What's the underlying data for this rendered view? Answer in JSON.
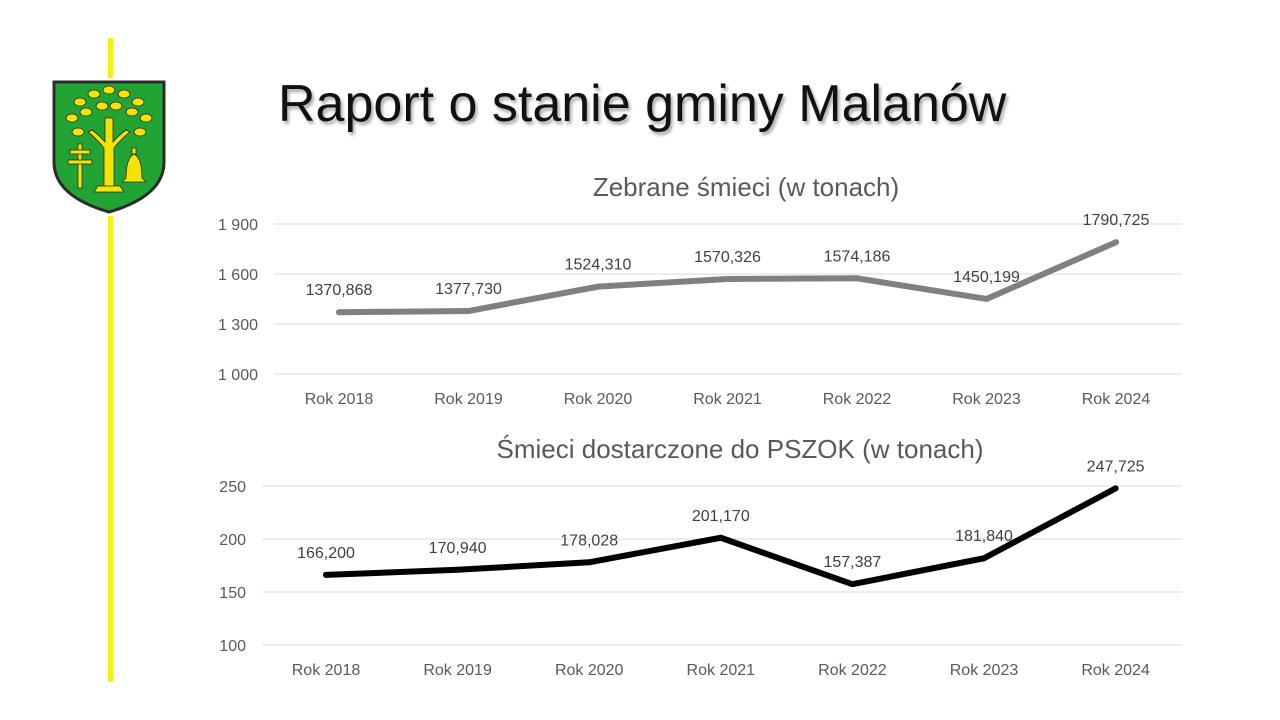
{
  "page": {
    "title": "Raport o stanie gminy Malanów"
  },
  "logo": {
    "shield_green": "#22a434",
    "emblem_yellow": "#f5e400",
    "outline": "#2b2b2b"
  },
  "chart_data": [
    {
      "type": "line",
      "title": "Zebrane śmieci (w tonach)",
      "categories": [
        "Rok 2018",
        "Rok 2019",
        "Rok 2020",
        "Rok 2021",
        "Rok 2022",
        "Rok 2023",
        "Rok 2024"
      ],
      "values": [
        1370.868,
        1377.73,
        1524.31,
        1570.326,
        1574.186,
        1450.199,
        1790.725
      ],
      "data_labels": [
        "1370,868",
        "1377,730",
        "1524,310",
        "1570,326",
        "1574,186",
        "1450,199",
        "1790,725"
      ],
      "ylim": [
        1000,
        1900
      ],
      "yticks": [
        1000,
        1300,
        1600,
        1900
      ],
      "ytick_labels": [
        "1 000",
        "1 300",
        "1 600",
        "1 900"
      ],
      "line_color": "#808080",
      "grid": true
    },
    {
      "type": "line",
      "title": "Śmieci dostarczone do PSZOK (w tonach)",
      "categories": [
        "Rok 2018",
        "Rok 2019",
        "Rok 2020",
        "Rok 2021",
        "Rok 2022",
        "Rok 2023",
        "Rok 2024"
      ],
      "values": [
        166.2,
        170.94,
        178.028,
        201.17,
        157.387,
        181.84,
        247.725
      ],
      "data_labels": [
        "166,200",
        "170,940",
        "178,028",
        "201,170",
        "157,387",
        "181,840",
        "247,725"
      ],
      "ylim": [
        100,
        250
      ],
      "yticks": [
        100,
        150,
        200,
        250
      ],
      "ytick_labels": [
        "100",
        "150",
        "200",
        "250"
      ],
      "line_color": "#000000",
      "grid": true
    }
  ]
}
